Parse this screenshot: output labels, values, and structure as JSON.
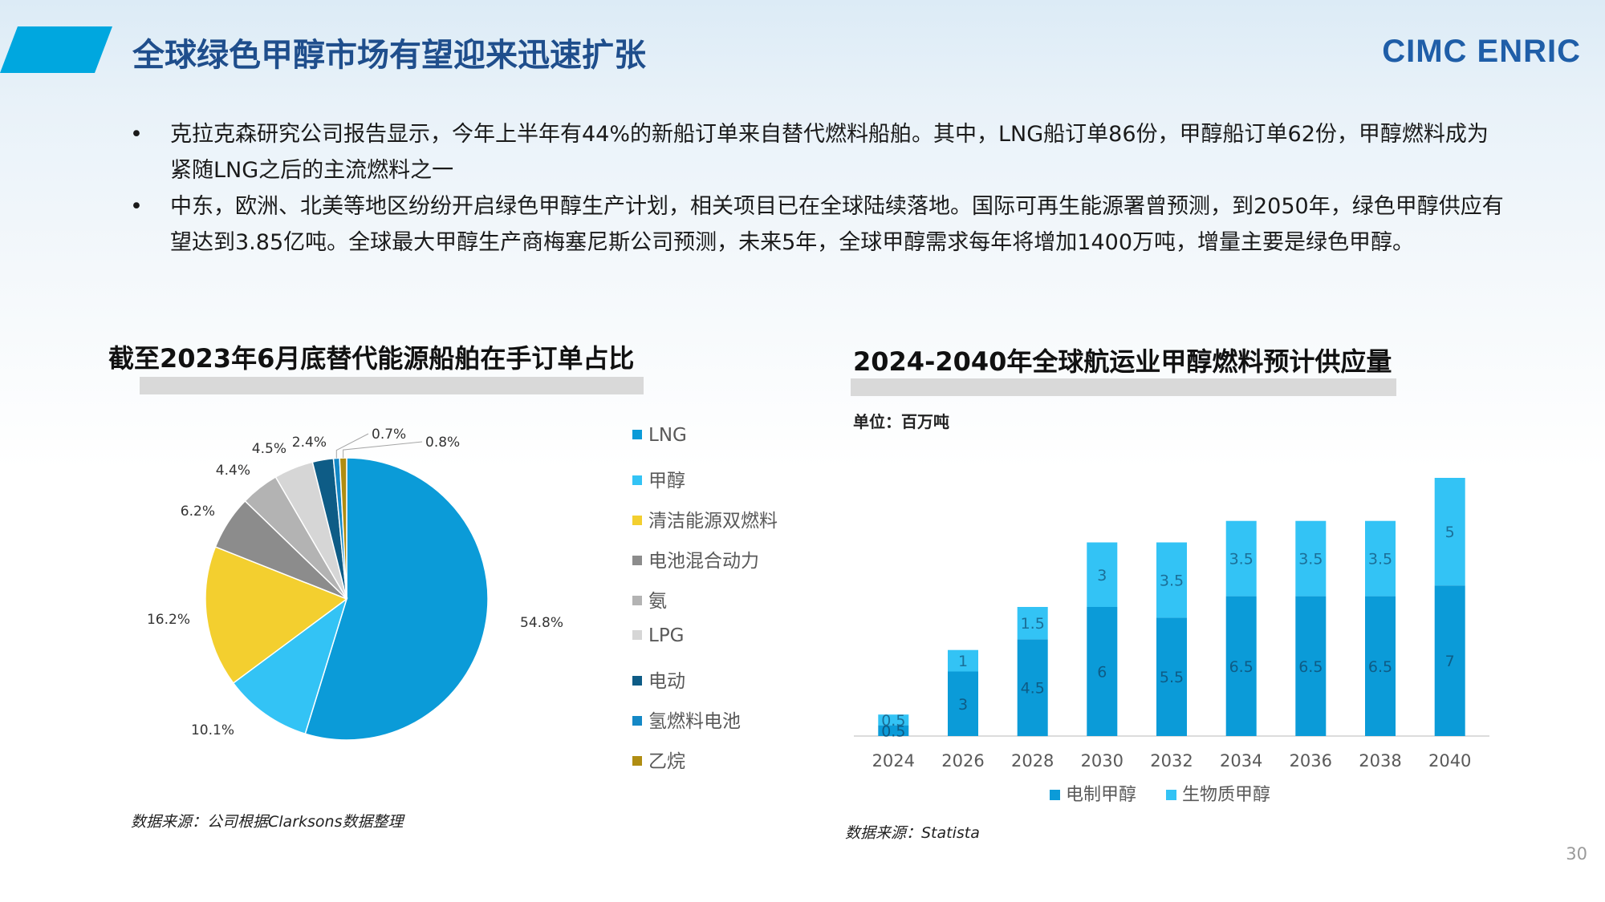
{
  "header": {
    "title": "全球绿色甲醇市场有望迎来迅速扩张",
    "logo": "CIMC ENRIC"
  },
  "bullets": [
    "克拉克森研究公司报告显示，今年上半年有44%的新船订单来自替代燃料船舶。其中，LNG船订单86份，甲醇船订单62份，甲醇燃料成为紧随LNG之后的主流燃料之一",
    "中东，欧洲、北美等地区纷纷开启绿色甲醇生产计划，相关项目已在全球陆续落地。国际可再生能源署曾预测，到2050年，绿色甲醇供应有望达到3.85亿吨。全球最大甲醇生产商梅塞尼斯公司预测，未来5年，全球甲醇需求每年将增加1400万吨，增量主要是绿色甲醇。"
  ],
  "bullet_symbol": "•",
  "page_number": "30",
  "chart_data": [
    {
      "type": "pie",
      "title": "截至2023年6月底替代能源船舶在手订单占比",
      "source": "数据来源：公司根据Clarksons数据整理",
      "slices": [
        {
          "name": "LNG",
          "value": 54.8,
          "label": "54.8%",
          "color": "#0b9bd8"
        },
        {
          "name": "甲醇",
          "value": 10.1,
          "label": "10.1%",
          "color": "#33c3f5"
        },
        {
          "name": "清洁能源双燃料",
          "value": 16.2,
          "label": "16.2%",
          "color": "#f3cf2f"
        },
        {
          "name": "电池混合动力",
          "value": 6.2,
          "label": "6.2%",
          "color": "#8c8c8c"
        },
        {
          "name": "氨",
          "value": 4.4,
          "label": "4.4%",
          "color": "#b3b3b3"
        },
        {
          "name": "LPG",
          "value": 4.5,
          "label": "4.5%",
          "color": "#d6d6d6"
        },
        {
          "name": "电动",
          "value": 2.4,
          "label": "2.4%",
          "color": "#0e5c86"
        },
        {
          "name": "氢燃料电池",
          "value": 0.7,
          "label": "0.7%",
          "color": "#1488c6"
        },
        {
          "name": "乙烷",
          "value": 0.8,
          "label": "0.8%",
          "color": "#b08d12"
        }
      ],
      "legend_position": "right"
    },
    {
      "type": "bar",
      "stacked": true,
      "title": "2024-2040年全球航运业甲醇燃料预计供应量",
      "unit_label": "单位：百万吨",
      "source": "数据来源：Statista",
      "categories": [
        "2024",
        "2026",
        "2028",
        "2030",
        "2032",
        "2034",
        "2036",
        "2038",
        "2040"
      ],
      "series": [
        {
          "name": "电制甲醇",
          "color": "#0b9bd8",
          "values": [
            0.5,
            3,
            4.5,
            6,
            5.5,
            6.5,
            6.5,
            6.5,
            7
          ]
        },
        {
          "name": "生物质甲醇",
          "color": "#33c3f5",
          "values": [
            0.5,
            1,
            1.5,
            3,
            3.5,
            3.5,
            3.5,
            3.5,
            5
          ]
        }
      ],
      "ylim": [
        0,
        12
      ],
      "legend_position": "bottom",
      "grid": false
    }
  ]
}
